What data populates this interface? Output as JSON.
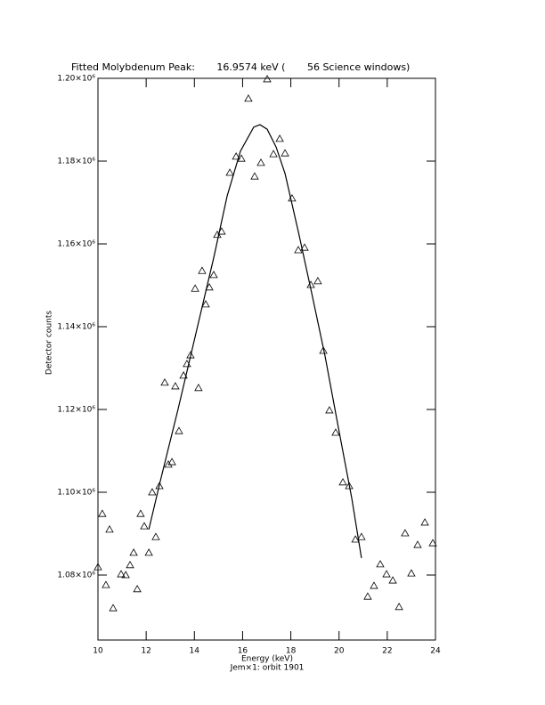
{
  "chart_data": {
    "type": "scatter",
    "title": "Fitted Molybdenum Peak:       16.9574 keV (       56 Science windows)",
    "x_label": "Energy (keV)",
    "subtitle": "Jem×1: orbit 1901",
    "y_label": "Detector counts",
    "xlim": [
      10,
      24
    ],
    "xticks": [
      10,
      12,
      14,
      16,
      18,
      20,
      22,
      24
    ],
    "ylim": [
      1064300,
      1200000
    ],
    "yticks": [
      {
        "value": 1080000,
        "label": "1.08×10⁶"
      },
      {
        "value": 1100000,
        "label": "1.10×10⁶"
      },
      {
        "value": 1120000,
        "label": "1.12×10⁶"
      },
      {
        "value": 1140000,
        "label": "1.14×10⁶"
      },
      {
        "value": 1160000,
        "label": "1.16×10⁶"
      },
      {
        "value": 1180000,
        "label": "1.18×10⁶"
      },
      {
        "value": 1200000,
        "label": "1.20×10⁶"
      }
    ],
    "series": [
      {
        "type": "scatter",
        "color": "#000000",
        "x": [
          10.0,
          10.18,
          10.33,
          10.48,
          10.63,
          10.96,
          11.15,
          11.33,
          11.48,
          11.63,
          11.77,
          11.92,
          12.11,
          12.25,
          12.4,
          12.55,
          12.77,
          12.92,
          13.07,
          13.21,
          13.36,
          13.55,
          13.69,
          13.84,
          14.03,
          14.17,
          14.32,
          14.47,
          14.62,
          14.8,
          14.95,
          15.13,
          15.47,
          15.73,
          15.95,
          16.24,
          16.5,
          16.76,
          17.02,
          17.28,
          17.54,
          17.76,
          18.05,
          18.31,
          18.57,
          18.83,
          19.12,
          19.35,
          19.6,
          19.86,
          20.16,
          20.42,
          20.68,
          20.93,
          21.19,
          21.45,
          21.71,
          21.97,
          22.23,
          22.49,
          22.74,
          23.0,
          23.26,
          23.56,
          23.89
        ],
        "values": [
          1081900,
          1094800,
          1077600,
          1091000,
          1072000,
          1080200,
          1080000,
          1082400,
          1085400,
          1076600,
          1094800,
          1091800,
          1085400,
          1100000,
          1089200,
          1101500,
          1126500,
          1106700,
          1107300,
          1125600,
          1114800,
          1128200,
          1131000,
          1133100,
          1149200,
          1125200,
          1153500,
          1145400,
          1149500,
          1152500,
          1162200,
          1163000,
          1177200,
          1181100,
          1180600,
          1195100,
          1176300,
          1179600,
          1199800,
          1181700,
          1185400,
          1181900,
          1171000,
          1158500,
          1159100,
          1150100,
          1151000,
          1134200,
          1119800,
          1114400,
          1102400,
          1101500,
          1088600,
          1089200,
          1074800,
          1077400,
          1082600,
          1080200,
          1078700,
          1072300,
          1090100,
          1080400,
          1087300,
          1092700,
          1087700
        ]
      },
      {
        "type": "line",
        "color": "#000000",
        "x": [
          12.11,
          12.59,
          13.32,
          14.06,
          14.8,
          15.36,
          15.91,
          16.46,
          16.72,
          17.02,
          17.39,
          17.76,
          18.31,
          18.87,
          19.42,
          19.97,
          20.53,
          20.93
        ],
        "values": [
          1091000,
          1102800,
          1120000,
          1138300,
          1156600,
          1171600,
          1182400,
          1188200,
          1188800,
          1187700,
          1183400,
          1177000,
          1163000,
          1148000,
          1132900,
          1115700,
          1098500,
          1084100
        ]
      }
    ]
  }
}
